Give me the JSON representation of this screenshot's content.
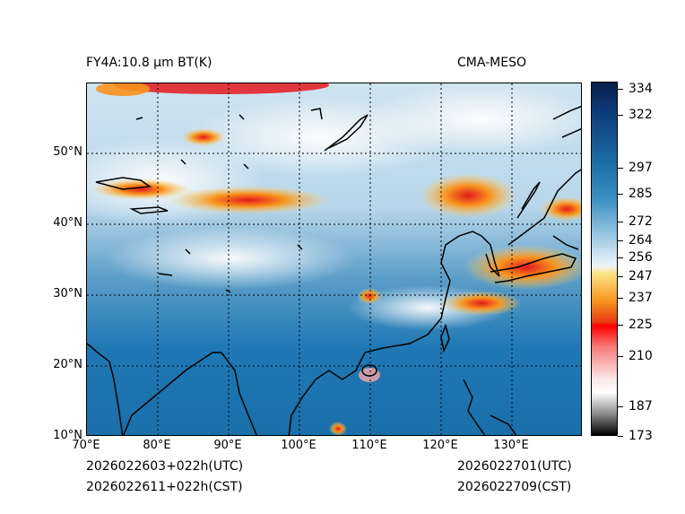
{
  "title_left": "FY4A:10.8 µm BT(K)",
  "title_right": "CMA-MESO",
  "lat_labels": [
    "50°N",
    "40°N",
    "30°N",
    "20°N",
    "10°N"
  ],
  "lon_labels": [
    "70°E",
    "80°E",
    "90°E",
    "100°E",
    "110°E",
    "120°E",
    "130°E"
  ],
  "colorbar_ticks": [
    "334",
    "322",
    "297",
    "285",
    "272",
    "264",
    "256",
    "247",
    "237",
    "225",
    "210",
    "187",
    "173"
  ],
  "init_utc": "2026022603+022h(UTC)",
  "init_cst": "2026022611+022h(CST)",
  "valid_utc": "2026022701(UTC)",
  "valid_cst": "2026022709(CST)",
  "colors": {
    "ocean_bt": "#1f78b4",
    "cold_cloud_orange": "#f7941d",
    "cold_cloud_red": "#e31a1c",
    "high_cloud_white": "#ffffff"
  }
}
